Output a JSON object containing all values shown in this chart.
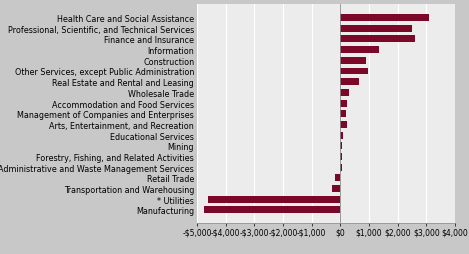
{
  "categories": [
    "Health Care and Social Assistance",
    "Professional, Scientific, and Technical Services",
    "Finance and Insurance",
    "Information",
    "Construction",
    "Other Services, except Public Administration",
    "Real Estate and Rental and Leasing",
    "Wholesale Trade",
    "Accommodation and Food Services",
    "Management of Companies and Enterprises",
    "Arts, Entertainment, and Recreation",
    "Educational Services",
    "Mining",
    "Forestry, Fishing, and Related Activities",
    "Administrative and Waste Management Services",
    "Retail Trade",
    "Transportation and Warehousing",
    "Utilities",
    "Manufacturing"
  ],
  "utilities_label": "* Utilities",
  "values": [
    3100,
    2500,
    2600,
    1350,
    900,
    950,
    650,
    300,
    250,
    200,
    220,
    80,
    50,
    70,
    60,
    -200,
    -280,
    -4600,
    -4750
  ],
  "bar_color": "#7B0828",
  "fig_bg_color": "#C8C8C8",
  "plot_bg_color": "#EDECEC",
  "xlim": [
    -5000,
    4000
  ],
  "xticks": [
    -5000,
    -4000,
    -3000,
    -2000,
    -1000,
    0,
    1000,
    2000,
    3000,
    4000
  ],
  "xtick_labels": [
    "-$5,000",
    "-$4,000",
    "-$3,000",
    "-$2,000",
    "-$1,000",
    "$0",
    "$1,000",
    "$2,000",
    "$3,000",
    "$4,000"
  ],
  "tick_fontsize": 5.5,
  "label_fontsize": 5.8,
  "bar_height": 0.65
}
